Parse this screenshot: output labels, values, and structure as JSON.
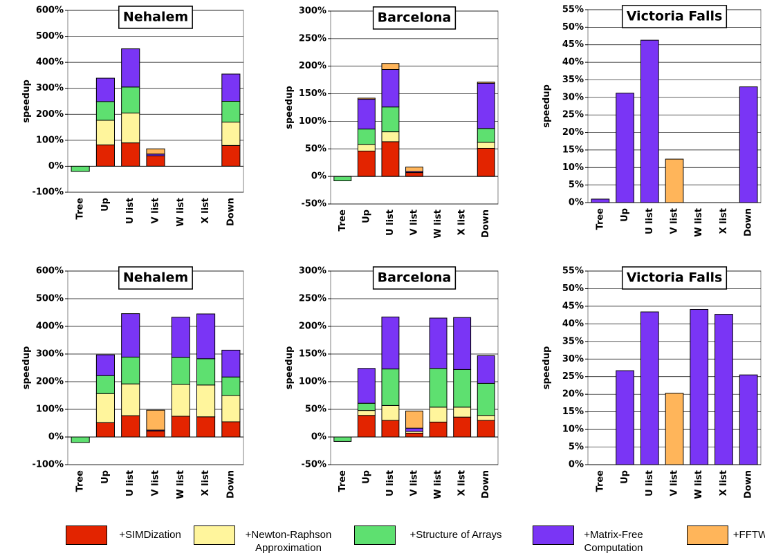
{
  "legend": [
    {
      "name": "+SIMDization",
      "color": "#e32400"
    },
    {
      "name": "+Newton-Raphson Approximation",
      "color": "#fff59c"
    },
    {
      "name": "+Structure of Arrays",
      "color": "#5ee070"
    },
    {
      "name": "+Matrix-Free Computation",
      "color": "#7a35f5"
    },
    {
      "name": "+FFTW",
      "color": "#ffb55a"
    }
  ],
  "chart_data": [
    {
      "type": "bar",
      "title": "Nehalem",
      "y_label": "speedup",
      "categories": [
        "Tree",
        "Up",
        "U list",
        "V list",
        "W list",
        "X list",
        "Down"
      ],
      "series": [
        {
          "values": [
            0,
            82,
            90,
            40,
            0,
            0,
            80
          ]
        },
        {
          "values": [
            0,
            95,
            115,
            0,
            0,
            0,
            90
          ]
        },
        {
          "values": [
            -20,
            72,
            100,
            0,
            0,
            0,
            80
          ]
        },
        {
          "values": [
            0,
            90,
            147,
            7,
            0,
            0,
            105
          ]
        },
        {
          "values": [
            0,
            0,
            0,
            20,
            0,
            0,
            0
          ]
        }
      ],
      "ylim": [
        -100,
        600
      ],
      "yticks": [
        {
          "value": -100,
          "label": "-100%"
        },
        {
          "value": 0,
          "label": "0%"
        },
        {
          "value": 100,
          "label": "100%"
        },
        {
          "value": 200,
          "label": "200%"
        },
        {
          "value": 300,
          "label": "300%"
        },
        {
          "value": 400,
          "label": "400%"
        },
        {
          "value": 500,
          "label": "500%"
        },
        {
          "value": 600,
          "label": "600%"
        }
      ],
      "grid": true
    },
    {
      "type": "bar",
      "title": "Barcelona",
      "y_label": "speedup",
      "categories": [
        "Tree",
        "Up",
        "U list",
        "V list",
        "W list",
        "X list",
        "Down"
      ],
      "series": [
        {
          "values": [
            0,
            46,
            63,
            7,
            0,
            0,
            51
          ]
        },
        {
          "values": [
            0,
            12,
            18,
            0,
            0,
            0,
            11
          ]
        },
        {
          "values": [
            -8,
            28,
            45,
            0,
            0,
            0,
            25
          ]
        },
        {
          "values": [
            0,
            54,
            68,
            2,
            0,
            0,
            82
          ]
        },
        {
          "values": [
            0,
            2,
            11,
            8,
            0,
            0,
            2
          ]
        }
      ],
      "ylim": [
        -50,
        300
      ],
      "yticks": [
        {
          "value": -50,
          "label": "-50%"
        },
        {
          "value": 0,
          "label": "0%"
        },
        {
          "value": 50,
          "label": "50%"
        },
        {
          "value": 100,
          "label": "100%"
        },
        {
          "value": 150,
          "label": "150%"
        },
        {
          "value": 200,
          "label": "200%"
        },
        {
          "value": 250,
          "label": "250%"
        },
        {
          "value": 300,
          "label": "300%"
        }
      ],
      "grid": true
    },
    {
      "type": "bar",
      "title": "Victoria Falls",
      "y_label": "speedup",
      "categories": [
        "Tree",
        "Up",
        "U list",
        "V list",
        "W list",
        "X list",
        "Down"
      ],
      "series": [
        {
          "values": [
            0,
            0,
            0,
            0,
            0,
            0,
            0
          ]
        },
        {
          "values": [
            0,
            0,
            0,
            0,
            0,
            0,
            0
          ]
        },
        {
          "values": [
            0,
            0,
            0,
            0,
            0,
            0,
            0
          ]
        },
        {
          "values": [
            1,
            31.2,
            46.3,
            0,
            0,
            0,
            33
          ]
        },
        {
          "values": [
            0,
            0,
            0,
            12.4,
            0,
            0,
            0
          ]
        }
      ],
      "ylim": [
        0,
        55
      ],
      "yticks": [
        {
          "value": 0,
          "label": "0%"
        },
        {
          "value": 5,
          "label": "5%"
        },
        {
          "value": 10,
          "label": "10%"
        },
        {
          "value": 15,
          "label": "15%"
        },
        {
          "value": 20,
          "label": "20%"
        },
        {
          "value": 25,
          "label": "25%"
        },
        {
          "value": 30,
          "label": "30%"
        },
        {
          "value": 35,
          "label": "35%"
        },
        {
          "value": 40,
          "label": "40%"
        },
        {
          "value": 45,
          "label": "45%"
        },
        {
          "value": 50,
          "label": "50%"
        },
        {
          "value": 55,
          "label": "55%"
        }
      ],
      "grid": true
    },
    {
      "type": "bar",
      "title": "Nehalem",
      "y_label": "speedup",
      "categories": [
        "Tree",
        "Up",
        "U list",
        "V list",
        "W list",
        "X list",
        "Down"
      ],
      "series": [
        {
          "values": [
            0,
            52,
            77,
            22,
            75,
            73,
            55
          ]
        },
        {
          "values": [
            0,
            105,
            115,
            0,
            115,
            115,
            95
          ]
        },
        {
          "values": [
            -20,
            65,
            97,
            0,
            98,
            95,
            67
          ]
        },
        {
          "values": [
            0,
            75,
            157,
            3,
            145,
            162,
            97
          ]
        },
        {
          "values": [
            0,
            0,
            0,
            72,
            0,
            0,
            0
          ]
        }
      ],
      "ylim": [
        -100,
        600
      ],
      "yticks": [
        {
          "value": -100,
          "label": "-100%"
        },
        {
          "value": 0,
          "label": "0%"
        },
        {
          "value": 100,
          "label": "100%"
        },
        {
          "value": 200,
          "label": "200%"
        },
        {
          "value": 300,
          "label": "300%"
        },
        {
          "value": 400,
          "label": "400%"
        },
        {
          "value": 500,
          "label": "500%"
        },
        {
          "value": 600,
          "label": "600%"
        }
      ],
      "grid": true
    },
    {
      "type": "bar",
      "title": "Barcelona",
      "y_label": "speedup",
      "categories": [
        "Tree",
        "Up",
        "U list",
        "V list",
        "W list",
        "X list",
        "Down"
      ],
      "series": [
        {
          "values": [
            0,
            39,
            30,
            7,
            27,
            36,
            30
          ]
        },
        {
          "values": [
            0,
            9,
            27,
            3,
            27,
            18,
            9
          ]
        },
        {
          "values": [
            -8,
            13,
            66,
            0,
            70,
            68,
            58
          ]
        },
        {
          "values": [
            0,
            63,
            94,
            6,
            91,
            94,
            50
          ]
        },
        {
          "values": [
            0,
            0,
            0,
            31,
            0,
            0,
            0
          ]
        }
      ],
      "ylim": [
        -50,
        300
      ],
      "yticks": [
        {
          "value": -50,
          "label": "-50%"
        },
        {
          "value": 0,
          "label": "0%"
        },
        {
          "value": 50,
          "label": "50%"
        },
        {
          "value": 100,
          "label": "100%"
        },
        {
          "value": 150,
          "label": "150%"
        },
        {
          "value": 200,
          "label": "200%"
        },
        {
          "value": 250,
          "label": "250%"
        },
        {
          "value": 300,
          "label": "300%"
        }
      ],
      "grid": true
    },
    {
      "type": "bar",
      "title": "Victoria Falls",
      "y_label": "speedup",
      "categories": [
        "Tree",
        "Up",
        "U list",
        "V list",
        "W list",
        "X list",
        "Down"
      ],
      "series": [
        {
          "values": [
            0,
            0,
            0,
            0,
            0,
            0,
            0
          ]
        },
        {
          "values": [
            0,
            0,
            0,
            0,
            0,
            0,
            0
          ]
        },
        {
          "values": [
            0,
            0,
            0,
            0,
            0,
            0,
            0
          ]
        },
        {
          "values": [
            0,
            26.7,
            43.4,
            0,
            44.1,
            42.7,
            25.5
          ]
        },
        {
          "values": [
            0,
            0,
            0,
            20.3,
            0,
            0,
            0
          ]
        }
      ],
      "ylim": [
        0,
        55
      ],
      "yticks": [
        {
          "value": 0,
          "label": "0%"
        },
        {
          "value": 5,
          "label": "5%"
        },
        {
          "value": 10,
          "label": "10%"
        },
        {
          "value": 15,
          "label": "15%"
        },
        {
          "value": 20,
          "label": "20%"
        },
        {
          "value": 25,
          "label": "25%"
        },
        {
          "value": 30,
          "label": "30%"
        },
        {
          "value": 35,
          "label": "35%"
        },
        {
          "value": 40,
          "label": "40%"
        },
        {
          "value": 45,
          "label": "45%"
        },
        {
          "value": 50,
          "label": "50%"
        },
        {
          "value": 55,
          "label": "55%"
        }
      ],
      "grid": true
    }
  ]
}
